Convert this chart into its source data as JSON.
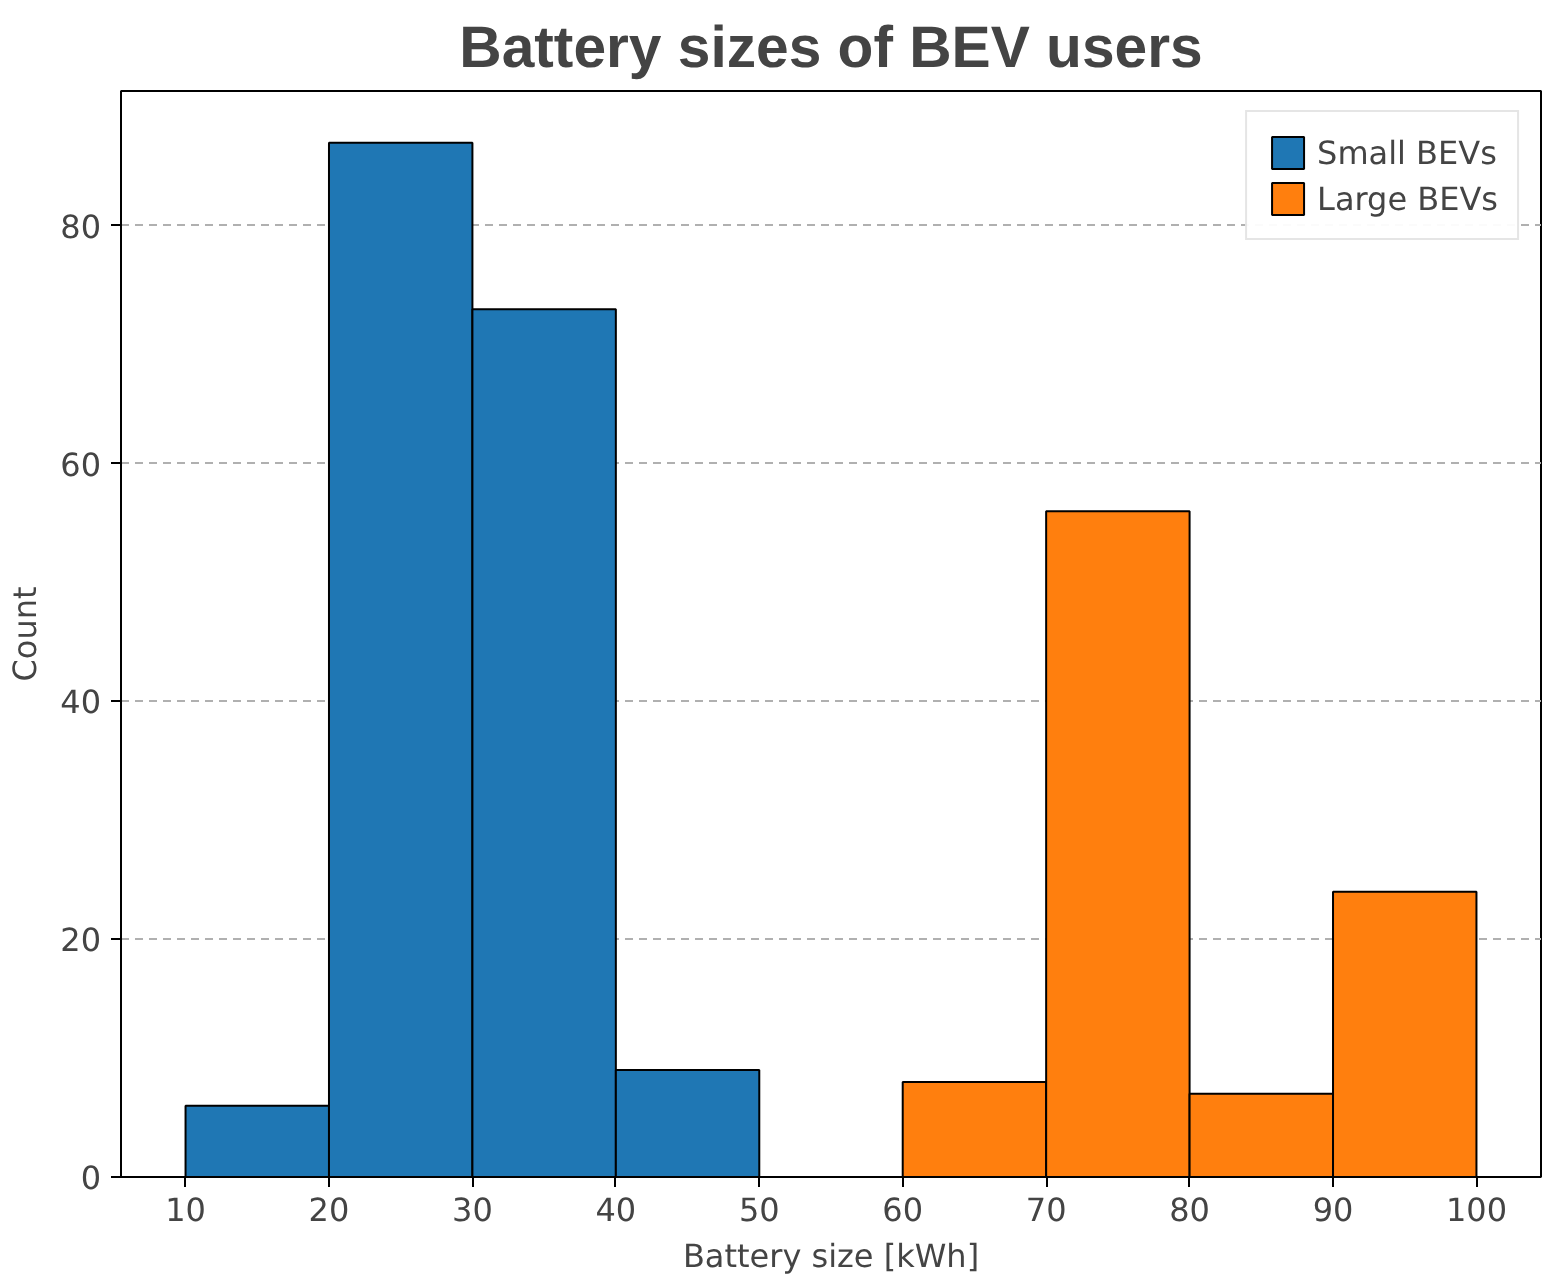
{
  "chart_data": {
    "type": "histogram",
    "title": "Battery sizes of BEV users",
    "xlabel": "Battery size [kWh]",
    "ylabel": "Count",
    "bins": [
      10,
      20,
      30,
      40,
      50,
      60,
      70,
      80,
      90,
      100
    ],
    "series": [
      {
        "name": "Small BEVs",
        "color": "#1f77b4",
        "values": [
          6,
          87,
          73,
          9,
          null,
          null,
          null,
          null,
          null
        ]
      },
      {
        "name": "Large BEVs",
        "color": "#ff7f0e",
        "values": [
          null,
          null,
          null,
          null,
          null,
          8,
          56,
          7,
          24
        ]
      }
    ],
    "xlim": [
      5.5,
      104.5
    ],
    "ylim": [
      0,
      91.35
    ],
    "xticks": [
      10,
      20,
      30,
      40,
      50,
      60,
      70,
      80,
      90,
      100
    ],
    "yticks": [
      0,
      20,
      40,
      60,
      80
    ],
    "grid": "y",
    "legend": "top right"
  }
}
